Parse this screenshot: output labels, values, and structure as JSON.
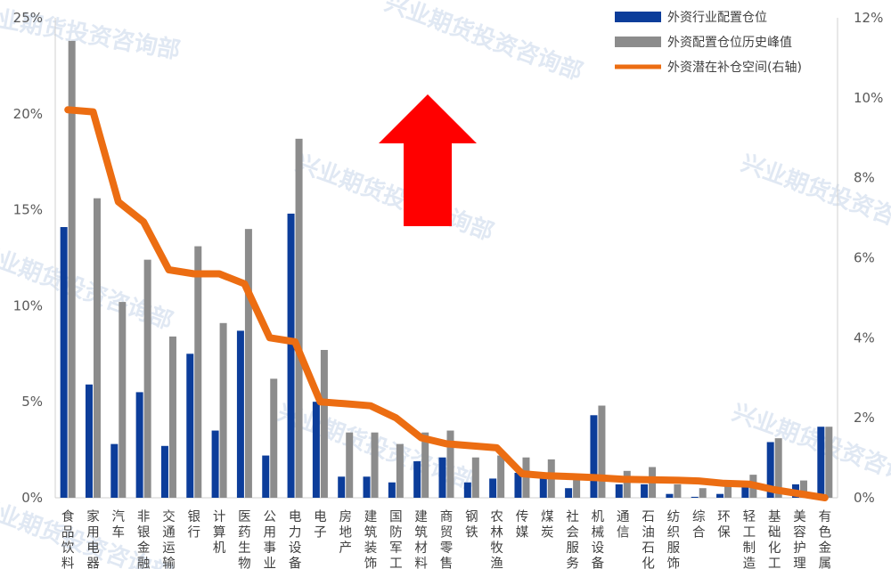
{
  "chart_data": {
    "type": "bar",
    "categories": [
      "食品饮料",
      "家用电器",
      "汽车",
      "非银金融",
      "交通运输",
      "银行",
      "计算机",
      "医药生物",
      "公用事业",
      "电力设备",
      "电子",
      "房地产",
      "建筑装饰",
      "国防军工",
      "建筑材料",
      "商贸零售",
      "钢铁",
      "农林牧渔",
      "传媒",
      "煤炭",
      "社会服务",
      "机械设备",
      "通信",
      "石油石化",
      "纺织服饰",
      "综合",
      "环保",
      "轻工制造",
      "基础化工",
      "美容护理",
      "有色金属"
    ],
    "series": [
      {
        "name": "外资行业配置仓位",
        "type": "bar",
        "axis": "left",
        "color": "#0c3d9a",
        "values": [
          14.1,
          5.9,
          2.8,
          5.5,
          2.7,
          7.5,
          3.5,
          8.7,
          2.2,
          14.8,
          5.0,
          1.1,
          1.1,
          0.8,
          1.9,
          2.1,
          0.8,
          1.0,
          1.3,
          1.0,
          0.5,
          4.3,
          0.7,
          0.7,
          0.2,
          0.05,
          0.2,
          0.6,
          2.9,
          0.7,
          3.7
        ]
      },
      {
        "name": "外资配置仓位历史峰值",
        "type": "bar",
        "axis": "left",
        "color": "#8c8c8c",
        "values": [
          23.8,
          15.6,
          10.2,
          12.4,
          8.4,
          13.1,
          9.1,
          14.0,
          6.2,
          18.7,
          7.7,
          3.4,
          3.4,
          2.8,
          3.4,
          3.5,
          2.1,
          2.2,
          2.1,
          2.0,
          1.2,
          4.8,
          1.4,
          1.6,
          0.7,
          0.5,
          0.6,
          1.2,
          3.1,
          0.9,
          3.7
        ]
      },
      {
        "name": "外资潜在补仓空间(右轴)",
        "type": "line",
        "axis": "right",
        "color": "#ec6d12",
        "values": [
          9.7,
          9.65,
          7.4,
          6.9,
          5.7,
          5.6,
          5.6,
          5.35,
          4.0,
          3.9,
          2.4,
          2.35,
          2.3,
          2.0,
          1.5,
          1.35,
          1.3,
          1.25,
          0.6,
          0.55,
          0.53,
          0.5,
          0.46,
          0.45,
          0.44,
          0.42,
          0.36,
          0.34,
          0.2,
          0.1,
          0.0
        ]
      }
    ],
    "y_left": {
      "min": 0,
      "max": 25,
      "ticks": [
        0,
        5,
        10,
        15,
        20,
        25
      ],
      "tick_labels": [
        "0%",
        "5%",
        "10%",
        "15%",
        "20%",
        "25%"
      ]
    },
    "y_right": {
      "min": 0,
      "max": 12,
      "ticks": [
        0,
        2,
        4,
        6,
        8,
        10,
        12
      ],
      "tick_labels": [
        "0%",
        "2%",
        "4%",
        "6%",
        "8%",
        "10%",
        "12%"
      ]
    },
    "legend_position": "top-right",
    "grid": false,
    "arrow": {
      "color": "#ff0000",
      "direction": "up"
    },
    "watermark": "兴业期货投资咨询部"
  }
}
